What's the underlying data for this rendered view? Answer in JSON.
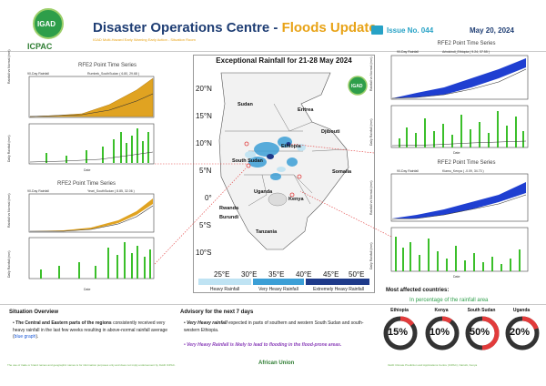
{
  "header": {
    "logo_text": "IGAD",
    "org": "ICPAC",
    "title_main": "Disaster Operations Centre - ",
    "title_accent": "Floods Update",
    "subtitle": "IGAD Multi-Hazard Early Warning Early Action - Situation Room",
    "issue": "Issue No. 044",
    "date": "May 20, 2024",
    "colors": {
      "primary": "#1f3e74",
      "accent": "#e8a317",
      "issue": "#27a2c6"
    }
  },
  "panels": {
    "south_sudan_top": {
      "heading": "RFE2 Point Time Series",
      "left_label": "90-Day Rainfall",
      "right_label": "Rumbek_SouthSudan ( 6.80, 29.68 )",
      "y1": "Rainfall vs Normal (mm)",
      "y2": "Daily Rainfall (mm)",
      "xlabel": "Date"
    },
    "south_sudan_bottom": {
      "heading": "RFE2 Point Time Series",
      "left_label": "90-Day Rainfall",
      "right_label": "Yeari_SouthSudan ( 8.85, 32.06 )",
      "y1": "Rainfall vs Normal (mm)",
      "y2": "Daily Rainfall (mm)",
      "xlabel": "Date"
    },
    "ethiopia": {
      "heading": "RFE2 Point Time Series",
      "left_label": "90-Day Rainfall",
      "right_label": "Arbokindi_Ethiopia ( 9.24, 37.55 )",
      "y1": "Rainfall vs Normal (mm)",
      "y2": "Daily Rainfall (mm)",
      "xlabel": "Date"
    },
    "kenya": {
      "heading": "RFE2 Point Time Series",
      "left_label": "90-Day Rainfall",
      "right_label": "Kiamu_Kenya ( -0.09, 34.73 )",
      "y1": "Rainfall vs Normal (mm)",
      "y2": "Daily Rainfall (mm)",
      "xlabel": "Date"
    }
  },
  "map": {
    "title": "Exceptional Rainfall for 21-28 May 2024",
    "lat_labels": [
      "20°N",
      "15°N",
      "10°N",
      "5°N",
      "0°",
      "5°S",
      "10°S"
    ],
    "lon_labels": [
      "25°E",
      "30°E",
      "35°E",
      "40°E",
      "45°E",
      "50°E"
    ],
    "countries": [
      "Sudan",
      "Eritrea",
      "Djibouti",
      "Ethiopia",
      "South Sudan",
      "Somalia",
      "Uganda",
      "Kenya",
      "Rwanda",
      "Burundi",
      "Tanzania"
    ],
    "logo_text": "IGAD",
    "legend": [
      {
        "label": "Heavy Rainfall",
        "color": "#bfe3f3"
      },
      {
        "label": "Very Heavy Rainfall",
        "color": "#3c9fd6"
      },
      {
        "label": "Extremely Heavy Rainfall",
        "color": "#1e3a8a"
      }
    ]
  },
  "situation": {
    "heading": "Situation Overview",
    "bullet_bold": "The Central and Eastern parts of the regions",
    "bullet_rest": " consistently received very heavy rainfall in the last few weeks resulting in above-normal rainfall average (",
    "bullet_link": "blue graph",
    "bullet_end": ")."
  },
  "advisory": {
    "heading": "Advisory for the next 7 days",
    "item1_bold": "Very Heavy rainfall",
    "item1_rest": " expected in parts of southern and western South Sudan and south-western Ethiopia.",
    "item2": "Very Heavy Rainfall is likely to lead to flooding in the flood-prone areas."
  },
  "affected": {
    "heading": "Most affected countries:",
    "subheading": "In percentage of the rainfall area",
    "countries": [
      {
        "name": "Ethiopia",
        "pct": 15,
        "label": "15%"
      },
      {
        "name": "Kenya",
        "pct": 10,
        "label": "10%"
      },
      {
        "name": "South Sudan",
        "pct": 50,
        "label": "50%"
      },
      {
        "name": "Uganda",
        "pct": 20,
        "label": "20%"
      }
    ]
  },
  "footer": {
    "left": "The use of trade or brand names and geographic names is for information purposes only and does not imply endorsement by IGAD ICPAC.",
    "center": "African Union",
    "right": "IGAD Climate Prediction and Applications Centre (ICPAC), Nairobi, Kenya"
  }
}
